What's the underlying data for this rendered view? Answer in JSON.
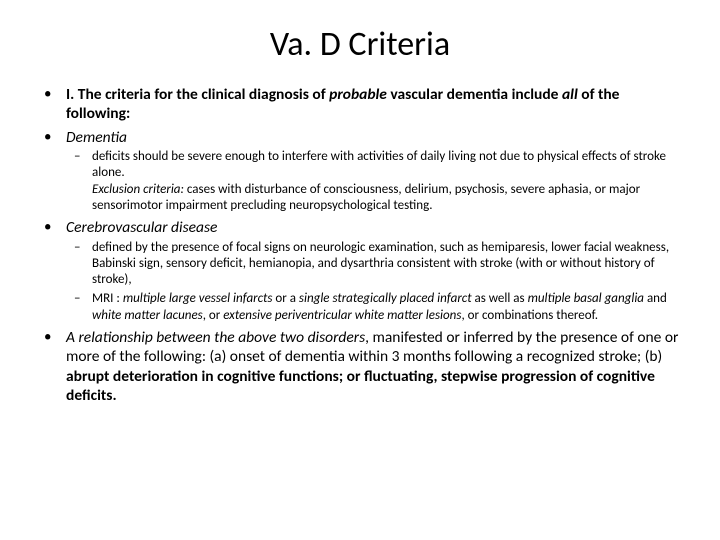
{
  "title": "Va. D Criteria",
  "items": [
    {
      "segments": [
        {
          "text": "I. The criteria for the clinical diagnosis of ",
          "bold": true
        },
        {
          "text": "probable",
          "bold": true,
          "italic": true
        },
        {
          "text": " vascular dementia include ",
          "bold": true
        },
        {
          "text": "all",
          "bold": true,
          "italic": true
        },
        {
          "text": " of the following:",
          "bold": true
        }
      ]
    },
    {
      "segments": [
        {
          "text": "Dementia",
          "italic": true
        }
      ],
      "sub": [
        {
          "segments": [
            {
              "text": "deficits should be severe enough to interfere with activities of daily living not due to physical effects of stroke alone."
            },
            {
              "br": true
            },
            {
              "text": "Exclusion criteria:",
              "italic": true
            },
            {
              "text": " cases with disturbance of consciousness, delirium, psychosis, severe aphasia, or major sensorimotor impairment precluding neuropsychological testing."
            }
          ]
        }
      ]
    },
    {
      "segments": [
        {
          "text": "Cerebrovascular disease",
          "italic": true
        }
      ],
      "sub": [
        {
          "segments": [
            {
              "text": " defined by the presence of focal signs on neurologic examination, such as hemiparesis, lower facial weakness, Babinski sign, sensory deficit, hemianopia, and dysarthria consistent with stroke (with or without history of stroke),"
            }
          ]
        },
        {
          "segments": [
            {
              "text": "MRI : "
            },
            {
              "text": "multiple large vessel infarcts",
              "italic": true
            },
            {
              "text": " or a "
            },
            {
              "text": "single strategically placed infarct",
              "italic": true
            },
            {
              "text": " as well as "
            },
            {
              "text": "multiple basal ganglia",
              "italic": true
            },
            {
              "text": " and "
            },
            {
              "text": "white matter lacunes",
              "italic": true
            },
            {
              "text": ", or "
            },
            {
              "text": "extensive periventricular white matter lesions",
              "italic": true
            },
            {
              "text": ", or combinations thereof."
            }
          ]
        }
      ]
    },
    {
      "segments": [
        {
          "text": "A relationship between the above two disorders",
          "italic": true
        },
        {
          "text": ", manifested or inferred by the presence of one or more of the following: (a) onset of dementia within 3 months following a recognized stroke; (b) "
        },
        {
          "text": "abrupt deterioration in cognitive functions; or fluctuating, stepwise progression of cognitive deficits.",
          "bold": true
        }
      ]
    }
  ]
}
